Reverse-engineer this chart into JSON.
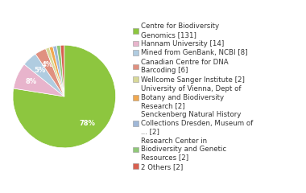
{
  "labels": [
    "Centre for Biodiversity\nGenomics [131]",
    "Hannam University [14]",
    "Mined from GenBank, NCBI [8]",
    "Canadian Centre for DNA\nBarcoding [6]",
    "Wellcome Sanger Institute [2]",
    "University of Vienna, Dept of\nBotany and Biodiversity\nResearch [2]",
    "Senckenberg Natural History\nCollections Dresden, Museum of\n... [2]",
    "Research Center in\nBiodiversity and Genetic\nResources [2]",
    "2 Others [2]"
  ],
  "values": [
    131,
    14,
    8,
    6,
    2,
    2,
    2,
    2,
    2
  ],
  "colors": [
    "#8dc63f",
    "#e8b4cc",
    "#b0cce0",
    "#e09080",
    "#d8d898",
    "#f0a850",
    "#a0b8d8",
    "#90c878",
    "#d86050"
  ],
  "background_color": "#ffffff",
  "pct_threshold": 2.5,
  "legend_fontsize": 6.2,
  "pct_fontsize": 6.0
}
